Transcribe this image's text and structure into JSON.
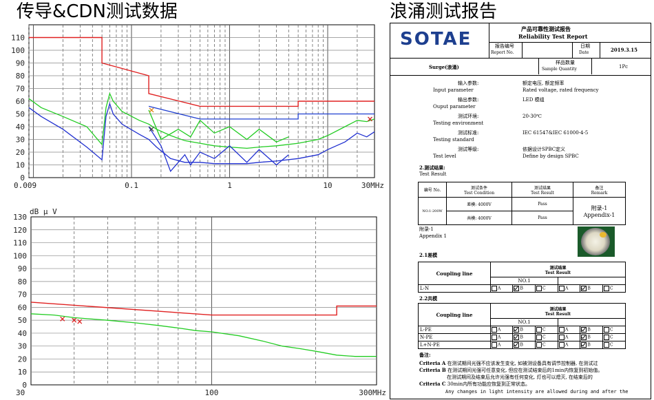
{
  "headings": {
    "left": "传导&CDN测试数据",
    "right": "浪涌测试报告"
  },
  "chart_data": [
    {
      "type": "line",
      "ylim": [
        0,
        120
      ],
      "yticks": [
        0,
        10,
        20,
        30,
        40,
        50,
        60,
        70,
        80,
        90,
        100,
        110
      ],
      "xscale": "log",
      "xlim": [
        0.009,
        30
      ],
      "xticks": [
        "0.009",
        "0.1",
        "1",
        "10",
        "30MHz"
      ],
      "series": [
        {
          "color": "#e02020",
          "x": [
            0.009,
            0.05,
            0.05,
            0.15,
            0.15,
            0.5,
            0.5,
            5,
            5,
            30
          ],
          "y": [
            110,
            110,
            90,
            80,
            66,
            56,
            56,
            56,
            60,
            60
          ]
        },
        {
          "color": "#1f3fd0",
          "x": [
            0.15,
            0.5,
            0.5,
            5,
            5,
            30
          ],
          "y": [
            56,
            46,
            46,
            46,
            50,
            50
          ]
        },
        {
          "color": "#22cc22",
          "x": [
            0.009,
            0.012,
            0.02,
            0.035,
            0.05,
            0.055,
            0.06,
            0.065,
            0.08,
            0.12,
            0.15,
            0.18,
            0.25,
            0.35,
            0.5,
            0.7,
            1,
            1.5,
            2,
            3,
            5,
            8,
            10,
            15,
            20,
            25,
            30
          ],
          "y": [
            62,
            55,
            48,
            40,
            26,
            55,
            66,
            60,
            52,
            45,
            42,
            38,
            33,
            29,
            27,
            25,
            24,
            23,
            24,
            25,
            27,
            30,
            33,
            40,
            45,
            44,
            46
          ]
        },
        {
          "color": "#2030d0",
          "x": [
            0.009,
            0.012,
            0.02,
            0.035,
            0.05,
            0.055,
            0.06,
            0.065,
            0.08,
            0.12,
            0.15,
            0.18,
            0.25,
            0.35,
            0.5,
            0.7,
            1,
            1.5,
            2,
            3,
            5,
            8,
            10,
            15,
            20,
            25,
            30
          ],
          "y": [
            55,
            48,
            38,
            24,
            14,
            48,
            58,
            50,
            42,
            34,
            30,
            24,
            15,
            12,
            12,
            11,
            11,
            11,
            12,
            13,
            15,
            18,
            22,
            28,
            35,
            32,
            36
          ]
        },
        {
          "color": "#22cc22",
          "x": [
            0.15,
            0.2,
            0.3,
            0.4,
            0.5,
            0.7,
            1,
            1.5,
            2,
            3,
            4
          ],
          "y": [
            53,
            30,
            38,
            32,
            45,
            35,
            40,
            30,
            38,
            28,
            32
          ]
        },
        {
          "color": "#2030d0",
          "x": [
            0.15,
            0.2,
            0.25,
            0.3,
            0.35,
            0.4,
            0.5,
            0.7,
            1,
            1.5,
            2,
            3,
            4
          ],
          "y": [
            40,
            25,
            5,
            12,
            18,
            10,
            20,
            15,
            25,
            12,
            22,
            10,
            18
          ]
        }
      ],
      "markers": [
        {
          "color": "#e08010",
          "x": 0.16,
          "y": 53
        },
        {
          "color": "#404040",
          "x": 0.16,
          "y": 38
        },
        {
          "color": "#d02020",
          "x": 27,
          "y": 46
        }
      ]
    },
    {
      "type": "line",
      "ylabel": "dB μ V",
      "ylim": [
        0,
        130
      ],
      "yticks": [
        0,
        10,
        20,
        30,
        40,
        50,
        60,
        70,
        80,
        90,
        100,
        110,
        120,
        130
      ],
      "xscale": "log",
      "xlim": [
        30,
        300
      ],
      "xticks": [
        "30",
        "100",
        "300MHz"
      ],
      "series": [
        {
          "color": "#e02020",
          "x": [
            30,
            100,
            230,
            230,
            300
          ],
          "y": [
            64,
            54,
            54,
            61,
            61
          ]
        },
        {
          "color": "#22cc22",
          "x": [
            30,
            35,
            40,
            50,
            60,
            70,
            80,
            90,
            100,
            120,
            140,
            160,
            180,
            200,
            230,
            260,
            300
          ],
          "y": [
            55,
            54,
            52,
            50,
            48,
            46,
            44,
            42,
            41,
            38,
            34,
            30,
            28,
            26,
            23,
            22,
            22
          ]
        }
      ],
      "markers": [
        {
          "color": "#e02020",
          "x": 37,
          "y": 51
        },
        {
          "color": "#e02020",
          "x": 40,
          "y": 50
        },
        {
          "color": "#e02020",
          "x": 41.5,
          "y": 49
        }
      ]
    }
  ],
  "report": {
    "logo": "SOTAE",
    "title_cn": "产品可靠性测试报告",
    "title_en": "Reliability Test Report",
    "report_no_cn": "报告编号",
    "report_no_en": "Report No.",
    "date_cn": "日期",
    "date_en": "Date",
    "date": "2019.3.15",
    "product": "Surge(浪涌)",
    "qty_cn": "样品数量",
    "qty_en": "Sample Quantity",
    "qty": "1Pc",
    "params": [
      {
        "cn": "输入参数:",
        "en": "Input parameter",
        "val1": "额定电压, 额定频率",
        "val2": "Rated voltage, rated frequency"
      },
      {
        "cn": "输出参数:",
        "en": "Ouput parameter",
        "val1": "LED 模组",
        "val2": ""
      },
      {
        "cn": "测试环境:",
        "en": "Testing environment",
        "val1": "20-30℃",
        "val2": ""
      },
      {
        "cn": "测试标准:",
        "en": "Testing standard",
        "val1": "IEC 61547&IEC 61000-4-5",
        "val2": ""
      },
      {
        "cn": "测试等级:",
        "en": "Test level",
        "val1": "依据设计SPBC定义",
        "val2": "Define by design SPBC"
      }
    ],
    "result_heading_cn": "2.测试结果:",
    "result_heading_en": "Test Result",
    "result_table": {
      "h_no_cn": "编号",
      "h_no_en": "No.",
      "h_cond_cn": "测试条件",
      "h_cond_en": "Test Condition",
      "h_res_cn": "测试结果",
      "h_res_en": "Test Result",
      "h_rem_cn": "备注",
      "h_rem_en": "Remark",
      "no": "NO.1-200W",
      "row1_cond": "差模: 4000V",
      "row1_res": "Pass",
      "row2_cond": "共模: 4000V",
      "row2_res": "Pass",
      "remark_cn": "附录-1",
      "remark_en": "Appendix-1"
    },
    "appendix_cn": "附录-1",
    "appendix_en": "Appendix 1",
    "dm_heading": "2.1差模",
    "cm_heading": "2.2共模",
    "coupling_line": "Coupling line",
    "result_cn": "测试结果",
    "result_en": "Test Result",
    "no1": "NO.1",
    "dm_rows": [
      {
        "label": "L-N"
      }
    ],
    "cm_rows": [
      {
        "label": "L-PE"
      },
      {
        "label": "N-PE"
      },
      {
        "label": "L+N-PE"
      }
    ],
    "opt_a": "A",
    "opt_b": "B",
    "opt_c": "C",
    "notes_heading": "备注:",
    "crit_a_label": "Criteria A",
    "crit_a_text": "在测试期间光强不应该发生变化, 如被测设备具有调节控制器, 在测试过",
    "crit_b_label": "Criteria B",
    "crit_b_text": "在测试期间光强可任意变化, 但应在测试结束后的1min内恢复到初始值。",
    "crit_b_text2": "在测试期间及结束后允许光强有任何变化, 灯也可以熄灭, 在结束后的",
    "crit_c_label": "Criteria C",
    "crit_c_text": "30min内所有功能应恢复到正常状态。",
    "footer_text": "Any changes in light intensity are allowed during and after the"
  }
}
